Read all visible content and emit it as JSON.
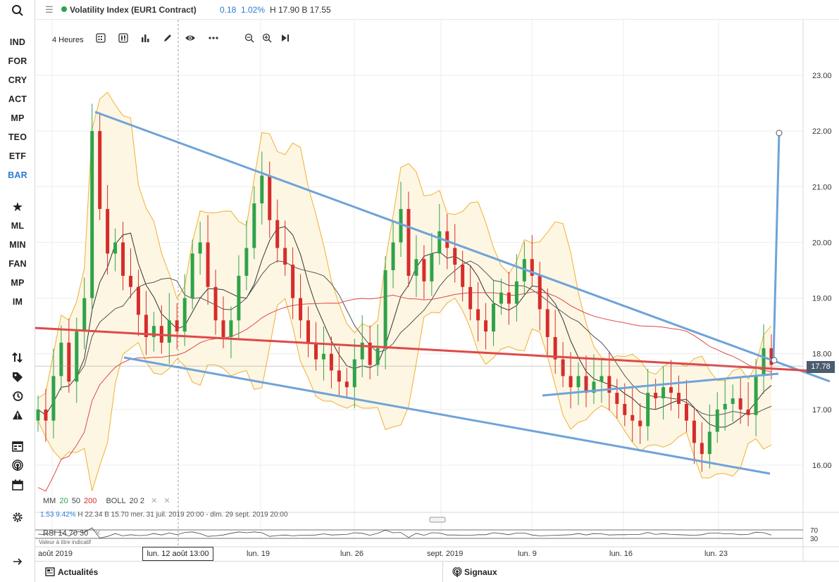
{
  "sidebar": {
    "top_icon": "search-icon",
    "items": [
      {
        "label": "IND",
        "active": false
      },
      {
        "label": "FOR",
        "active": false
      },
      {
        "label": "CRY",
        "active": false
      },
      {
        "label": "ACT",
        "active": false
      },
      {
        "label": "MP",
        "active": false
      },
      {
        "label": "TEO",
        "active": false
      },
      {
        "label": "ETF",
        "active": false
      },
      {
        "label": "BAR",
        "active": true
      }
    ],
    "items2": [
      {
        "label": "ML"
      },
      {
        "label": "MIN"
      },
      {
        "label": "FAN"
      },
      {
        "label": "MP"
      },
      {
        "label": "IM"
      }
    ],
    "star_icon": "star-icon",
    "tool_icons": [
      "sort-arrows-icon",
      "tag-icon",
      "history-icon",
      "alert-icon",
      "calendar-grid-icon",
      "broadcast-icon",
      "calendar-icon",
      "gear-icon"
    ],
    "expand_icon": "arrow-right-icon"
  },
  "header": {
    "title": "Volatility Index (EUR1 Contract)",
    "change": "0.18",
    "change_pct": "1.02%",
    "high_low": "H 17.90  B 17.55",
    "status_color": "#2fa34a"
  },
  "toolbar": {
    "timeframe": "4 Heures",
    "icons": [
      "calendar-grid-icon",
      "candlestick-icon",
      "bar-chart-icon",
      "pencil-icon",
      "eye-icon",
      "more-icon",
      "zoom-out-icon",
      "zoom-in-icon",
      "skip-forward-icon"
    ]
  },
  "chart_data": {
    "type": "candlestick",
    "y_ticks": [
      "23.00",
      "22.00",
      "21.00",
      "20.00",
      "19.00",
      "18.00",
      "17.00",
      "16.00"
    ],
    "ylim": [
      15.5,
      23.5
    ],
    "x_ticks": [
      "août 2019",
      "lun. 19",
      "lun. 26",
      "sept. 2019",
      "lun. 9",
      "lun. 16",
      "lun. 23"
    ],
    "crosshair_date": "lun. 12 août 13:00",
    "last_price": "17.78",
    "close_series": [
      17.0,
      16.8,
      17.6,
      18.2,
      17.5,
      18.4,
      19.0,
      22.0,
      20.6,
      19.8,
      20.0,
      19.4,
      19.2,
      18.7,
      18.3,
      18.5,
      18.2,
      18.6,
      18.4,
      19.0,
      19.8,
      20.0,
      19.2,
      18.6,
      18.3,
      18.6,
      19.4,
      19.9,
      20.7,
      21.2,
      20.4,
      19.9,
      19.6,
      19.0,
      18.6,
      18.2,
      17.9,
      18.0,
      17.7,
      17.5,
      17.4,
      17.9,
      18.2,
      17.8,
      18.1,
      19.5,
      20.0,
      20.6,
      19.4,
      19.7,
      19.3,
      19.8,
      20.2,
      19.9,
      19.6,
      19.2,
      18.8,
      18.6,
      18.4,
      18.9,
      19.1,
      18.9,
      19.3,
      19.7,
      19.4,
      18.8,
      18.3,
      17.9,
      17.6,
      17.4,
      17.6,
      17.3,
      17.5,
      17.6,
      17.3,
      17.1,
      16.9,
      16.8,
      16.7,
      17.3,
      17.2,
      17.4,
      17.3,
      17.1,
      16.8,
      16.4,
      16.2,
      16.6,
      17.0,
      17.1,
      17.2,
      17.0,
      16.9,
      17.6,
      18.1,
      17.8
    ],
    "indicators": {
      "mm_label": "MM",
      "mm_periods": [
        "20",
        "50",
        "200"
      ],
      "mm_colors": [
        "#2fa34a",
        "#222222",
        "#d62c2c"
      ],
      "boll_label": "BOLL",
      "boll_params": "20  2",
      "readout_value": "1.53",
      "readout_pct": "9.42%",
      "readout_hl": "H 22.34  B 15.70",
      "readout_dates": "mer. 31 juil. 2019 20:00 - dim. 29 sept. 2019 20:00",
      "rsi_label": "RSI",
      "rsi_params": "14  70  30",
      "rsi_levels": [
        "70",
        "30"
      ],
      "note": "Valeur à titre indicatif"
    },
    "colors": {
      "up": "#2fa34a",
      "down": "#d62c2c",
      "trendline": "#6fa3d8",
      "red_line": "#e04848",
      "boll_fill": "#fdf6e3",
      "boll_line": "#f0b030"
    }
  },
  "footer": {
    "news_label": "Actualités",
    "news_icon": "newspaper-icon",
    "signals_label": "Signaux",
    "signals_icon": "signal-icon"
  }
}
